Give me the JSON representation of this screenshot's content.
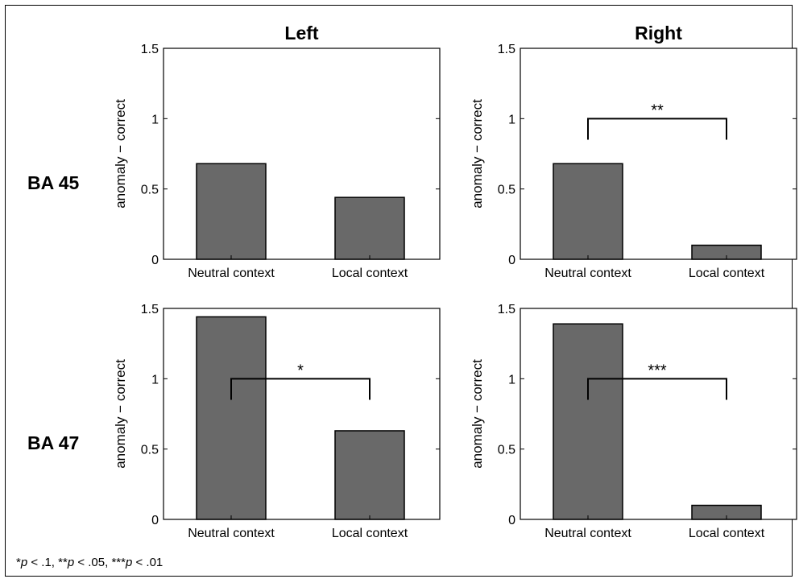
{
  "columns": [
    "Left",
    "Right"
  ],
  "rows": [
    "BA 45",
    "BA 47"
  ],
  "colors": {
    "bar": "#696969",
    "axis": "#000000"
  },
  "chart_data": [
    {
      "type": "bar",
      "row": "BA 45",
      "column": "Left",
      "categories": [
        "Neutral context",
        "Local context"
      ],
      "values": [
        0.68,
        0.44
      ],
      "ylabel": "anomaly − correct",
      "ylim": [
        0,
        1.5
      ],
      "yticks": [
        "0",
        "0.5",
        "1",
        "1.5"
      ],
      "significance": ""
    },
    {
      "type": "bar",
      "row": "BA 45",
      "column": "Right",
      "categories": [
        "Neutral context",
        "Local context"
      ],
      "values": [
        0.68,
        0.1
      ],
      "ylabel": "anomaly − correct",
      "ylim": [
        0,
        1.5
      ],
      "yticks": [
        "0",
        "0.5",
        "1",
        "1.5"
      ],
      "significance": "**"
    },
    {
      "type": "bar",
      "row": "BA 47",
      "column": "Left",
      "categories": [
        "Neutral context",
        "Local context"
      ],
      "values": [
        1.44,
        0.63
      ],
      "ylabel": "anomaly − correct",
      "ylim": [
        0,
        1.5
      ],
      "yticks": [
        "0",
        "0.5",
        "1",
        "1.5"
      ],
      "significance": "*"
    },
    {
      "type": "bar",
      "row": "BA 47",
      "column": "Right",
      "categories": [
        "Neutral context",
        "Local context"
      ],
      "values": [
        1.39,
        0.1
      ],
      "ylabel": "anomaly − correct",
      "ylim": [
        0,
        1.5
      ],
      "yticks": [
        "0",
        "0.5",
        "1",
        "1.5"
      ],
      "significance": "***"
    }
  ],
  "footnote": {
    "part1_sym": "*",
    "part1_p": "p",
    "part1_rest": " < .1, ",
    "part2_sym": "**",
    "part2_p": "p",
    "part2_rest": " < .05, ",
    "part3_sym": "***",
    "part3_p": "p",
    "part3_rest": " < .01"
  }
}
